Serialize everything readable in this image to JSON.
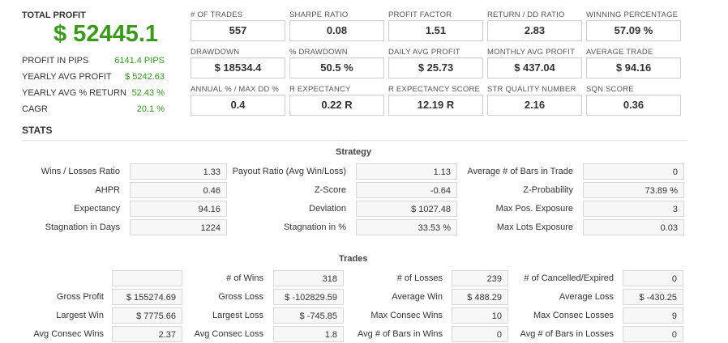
{
  "summary": {
    "total_profit_label": "TOTAL PROFIT",
    "total_profit_value": "$ 52445.1",
    "rows": [
      {
        "label": "PROFIT IN PIPS",
        "value": "6141.4 PIPS"
      },
      {
        "label": "YEARLY AVG PROFIT",
        "value": "$ 5242.63"
      },
      {
        "label": "YEARLY AVG % RETURN",
        "value": "52.43 %"
      },
      {
        "label": "CAGR",
        "value": "20.1 %"
      }
    ]
  },
  "kpis": [
    {
      "label": "# OF TRADES",
      "value": "557"
    },
    {
      "label": "SHARPE RATIO",
      "value": "0.08"
    },
    {
      "label": "PROFIT FACTOR",
      "value": "1.51"
    },
    {
      "label": "RETURN / DD RATIO",
      "value": "2.83"
    },
    {
      "label": "WINNING PERCENTAGE",
      "value": "57.09 %"
    },
    {
      "label": "DRAWDOWN",
      "value": "$ 18534.4"
    },
    {
      "label": "% DRAWDOWN",
      "value": "50.5 %"
    },
    {
      "label": "DAILY AVG PROFIT",
      "value": "$ 25.73"
    },
    {
      "label": "MONTHLY AVG PROFIT",
      "value": "$ 437.04"
    },
    {
      "label": "AVERAGE TRADE",
      "value": "$ 94.16"
    },
    {
      "label": "ANNUAL % / MAX DD %",
      "value": "0.4"
    },
    {
      "label": "R EXPECTANCY",
      "value": "0.22 R"
    },
    {
      "label": "R EXPECTANCY SCORE",
      "value": "12.19 R"
    },
    {
      "label": "STR QUALITY NUMBER",
      "value": "2.16"
    },
    {
      "label": "SQN SCORE",
      "value": "0.36"
    }
  ],
  "stats_title": "STATS",
  "strategy": {
    "title": "Strategy",
    "rows": [
      [
        {
          "label": "Wins / Losses Ratio",
          "value": "1.33"
        },
        {
          "label": "Payout Ratio (Avg Win/Loss)",
          "value": "1.13"
        },
        {
          "label": "Average # of Bars in Trade",
          "value": "0"
        }
      ],
      [
        {
          "label": "AHPR",
          "value": "0.46"
        },
        {
          "label": "Z-Score",
          "value": "-0.64"
        },
        {
          "label": "Z-Probability",
          "value": "73.89 %"
        }
      ],
      [
        {
          "label": "Expectancy",
          "value": "94.16"
        },
        {
          "label": "Deviation",
          "value": "$ 1027.48"
        },
        {
          "label": "Max Pos. Exposure",
          "value": "3"
        }
      ],
      [
        {
          "label": "Stagnation in Days",
          "value": "1224"
        },
        {
          "label": "Stagnation in %",
          "value": "33.53 %"
        },
        {
          "label": "Max Lots Exposure",
          "value": "0.03"
        }
      ]
    ]
  },
  "trades": {
    "title": "Trades",
    "rows": [
      [
        {
          "label": "",
          "value": ""
        },
        {
          "label": "# of Wins",
          "value": "318"
        },
        {
          "label": "# of Losses",
          "value": "239"
        },
        {
          "label": "# of Cancelled/Expired",
          "value": "0"
        }
      ],
      [
        {
          "label": "Gross Profit",
          "value": "$ 155274.69"
        },
        {
          "label": "Gross Loss",
          "value": "$ -102829.59"
        },
        {
          "label": "Average Win",
          "value": "$ 488.29"
        },
        {
          "label": "Average Loss",
          "value": "$ -430.25"
        }
      ],
      [
        {
          "label": "Largest Win",
          "value": "$ 7775.66"
        },
        {
          "label": "Largest Loss",
          "value": "$ -745.85"
        },
        {
          "label": "Max Consec Wins",
          "value": "10"
        },
        {
          "label": "Max Consec Losses",
          "value": "9"
        }
      ],
      [
        {
          "label": "Avg Consec Wins",
          "value": "2.37"
        },
        {
          "label": "Avg Consec Loss",
          "value": "1.8"
        },
        {
          "label": "Avg # of Bars in Wins",
          "value": "0"
        },
        {
          "label": "Avg # of Bars in Losses",
          "value": "0"
        }
      ]
    ]
  }
}
